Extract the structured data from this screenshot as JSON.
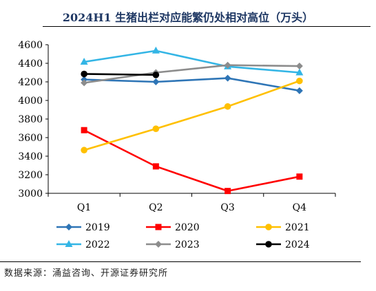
{
  "title": "2024H1 生猪出栏对应能繁仍处相对高位（万头）",
  "source": "数据来源：涌益咨询、开源证券研究所",
  "chart_data": {
    "type": "line",
    "title": "2024H1 生猪出栏对应能繁仍处相对高位（万头）",
    "categories": [
      "Q1",
      "Q2",
      "Q3",
      "Q4"
    ],
    "ylim": [
      3000,
      4600
    ],
    "yticks": [
      3000,
      3200,
      3400,
      3600,
      3800,
      4000,
      4200,
      4400,
      4600
    ],
    "grid": false,
    "legend_position": "bottom",
    "series": [
      {
        "name": "2019",
        "color": "#2e75b6",
        "marker": "diamond",
        "values": [
          4225,
          4200,
          4240,
          4105
        ]
      },
      {
        "name": "2020",
        "color": "#ff0000",
        "marker": "square",
        "values": [
          3680,
          3290,
          3025,
          3180
        ]
      },
      {
        "name": "2021",
        "color": "#ffc000",
        "marker": "circle",
        "values": [
          3465,
          3695,
          3935,
          4210
        ]
      },
      {
        "name": "2022",
        "color": "#33b5e5",
        "marker": "triangle",
        "values": [
          4415,
          4535,
          4365,
          4300
        ]
      },
      {
        "name": "2023",
        "color": "#8c8c8c",
        "marker": "diamond",
        "values": [
          4190,
          4300,
          4380,
          4370
        ]
      },
      {
        "name": "2024",
        "color": "#000000",
        "marker": "circle",
        "values": [
          4285,
          4275,
          null,
          null
        ]
      }
    ]
  }
}
